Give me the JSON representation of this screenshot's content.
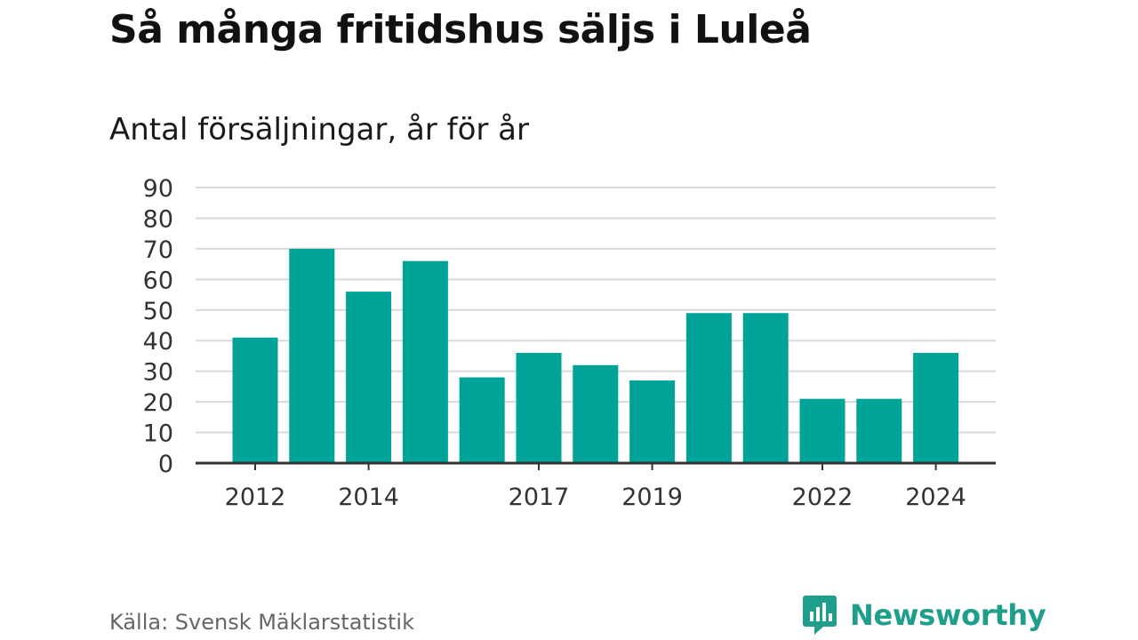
{
  "title": "Så många fritidshus säljs i Luleå",
  "subtitle": "Antal försäljningar, år för år",
  "source": "Källa: Svensk Mäklarstatistik",
  "brand": {
    "name": "Newsworthy",
    "icon": "bar-chart-speech-bubble-icon",
    "color": "#1f9e8c"
  },
  "chart_data": {
    "type": "bar",
    "categories": [
      "2012",
      "2013",
      "2014",
      "2015",
      "2016",
      "2017",
      "2018",
      "2019",
      "2020",
      "2021",
      "2022",
      "2023",
      "2024"
    ],
    "values": [
      41,
      70,
      56,
      66,
      28,
      36,
      32,
      27,
      49,
      49,
      21,
      21,
      36
    ],
    "x_tick_labels": [
      "2012",
      "2014",
      "2017",
      "2019",
      "2022",
      "2024"
    ],
    "y_ticks": [
      0,
      10,
      20,
      30,
      40,
      50,
      60,
      70,
      80,
      90
    ],
    "ylim": [
      0,
      90
    ],
    "xlabel": "",
    "ylabel": "",
    "bar_color": "#00a398",
    "grid": true,
    "legend": false
  }
}
